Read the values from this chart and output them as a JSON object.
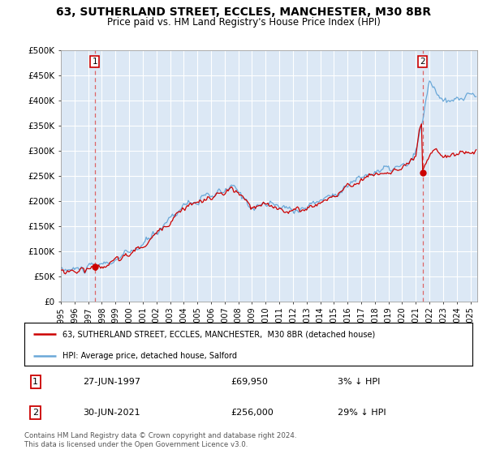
{
  "title": "63, SUTHERLAND STREET, ECCLES, MANCHESTER, M30 8BR",
  "subtitle": "Price paid vs. HM Land Registry's House Price Index (HPI)",
  "ylim": [
    0,
    500000
  ],
  "yticks": [
    0,
    50000,
    100000,
    150000,
    200000,
    250000,
    300000,
    350000,
    400000,
    450000,
    500000
  ],
  "ytick_labels": [
    "£0",
    "£50K",
    "£100K",
    "£150K",
    "£200K",
    "£250K",
    "£300K",
    "£350K",
    "£400K",
    "£450K",
    "£500K"
  ],
  "xlim_start": 1995.0,
  "xlim_end": 2025.5,
  "xtick_years": [
    1995,
    1996,
    1997,
    1998,
    1999,
    2000,
    2001,
    2002,
    2003,
    2004,
    2005,
    2006,
    2007,
    2008,
    2009,
    2010,
    2011,
    2012,
    2013,
    2014,
    2015,
    2016,
    2017,
    2018,
    2019,
    2020,
    2021,
    2022,
    2023,
    2024,
    2025
  ],
  "hpi_color": "#6aa8d8",
  "price_color": "#cc0000",
  "dashed_color": "#dd4444",
  "sale1_x": 1997.49,
  "sale1_y": 69950,
  "sale1_label": "1",
  "sale1_date": "27-JUN-1997",
  "sale1_price": "£69,950",
  "sale1_hpi": "3% ↓ HPI",
  "sale2_x": 2021.49,
  "sale2_y": 256000,
  "sale2_label": "2",
  "sale2_date": "30-JUN-2021",
  "sale2_price": "£256,000",
  "sale2_hpi": "29% ↓ HPI",
  "legend_line1": "63, SUTHERLAND STREET, ECCLES, MANCHESTER,  M30 8BR (detached house)",
  "legend_line2": "HPI: Average price, detached house, Salford",
  "footnote": "Contains HM Land Registry data © Crown copyright and database right 2024.\nThis data is licensed under the Open Government Licence v3.0.",
  "bg_color": "#dce8f5",
  "plot_bg_color": "#dce8f5"
}
